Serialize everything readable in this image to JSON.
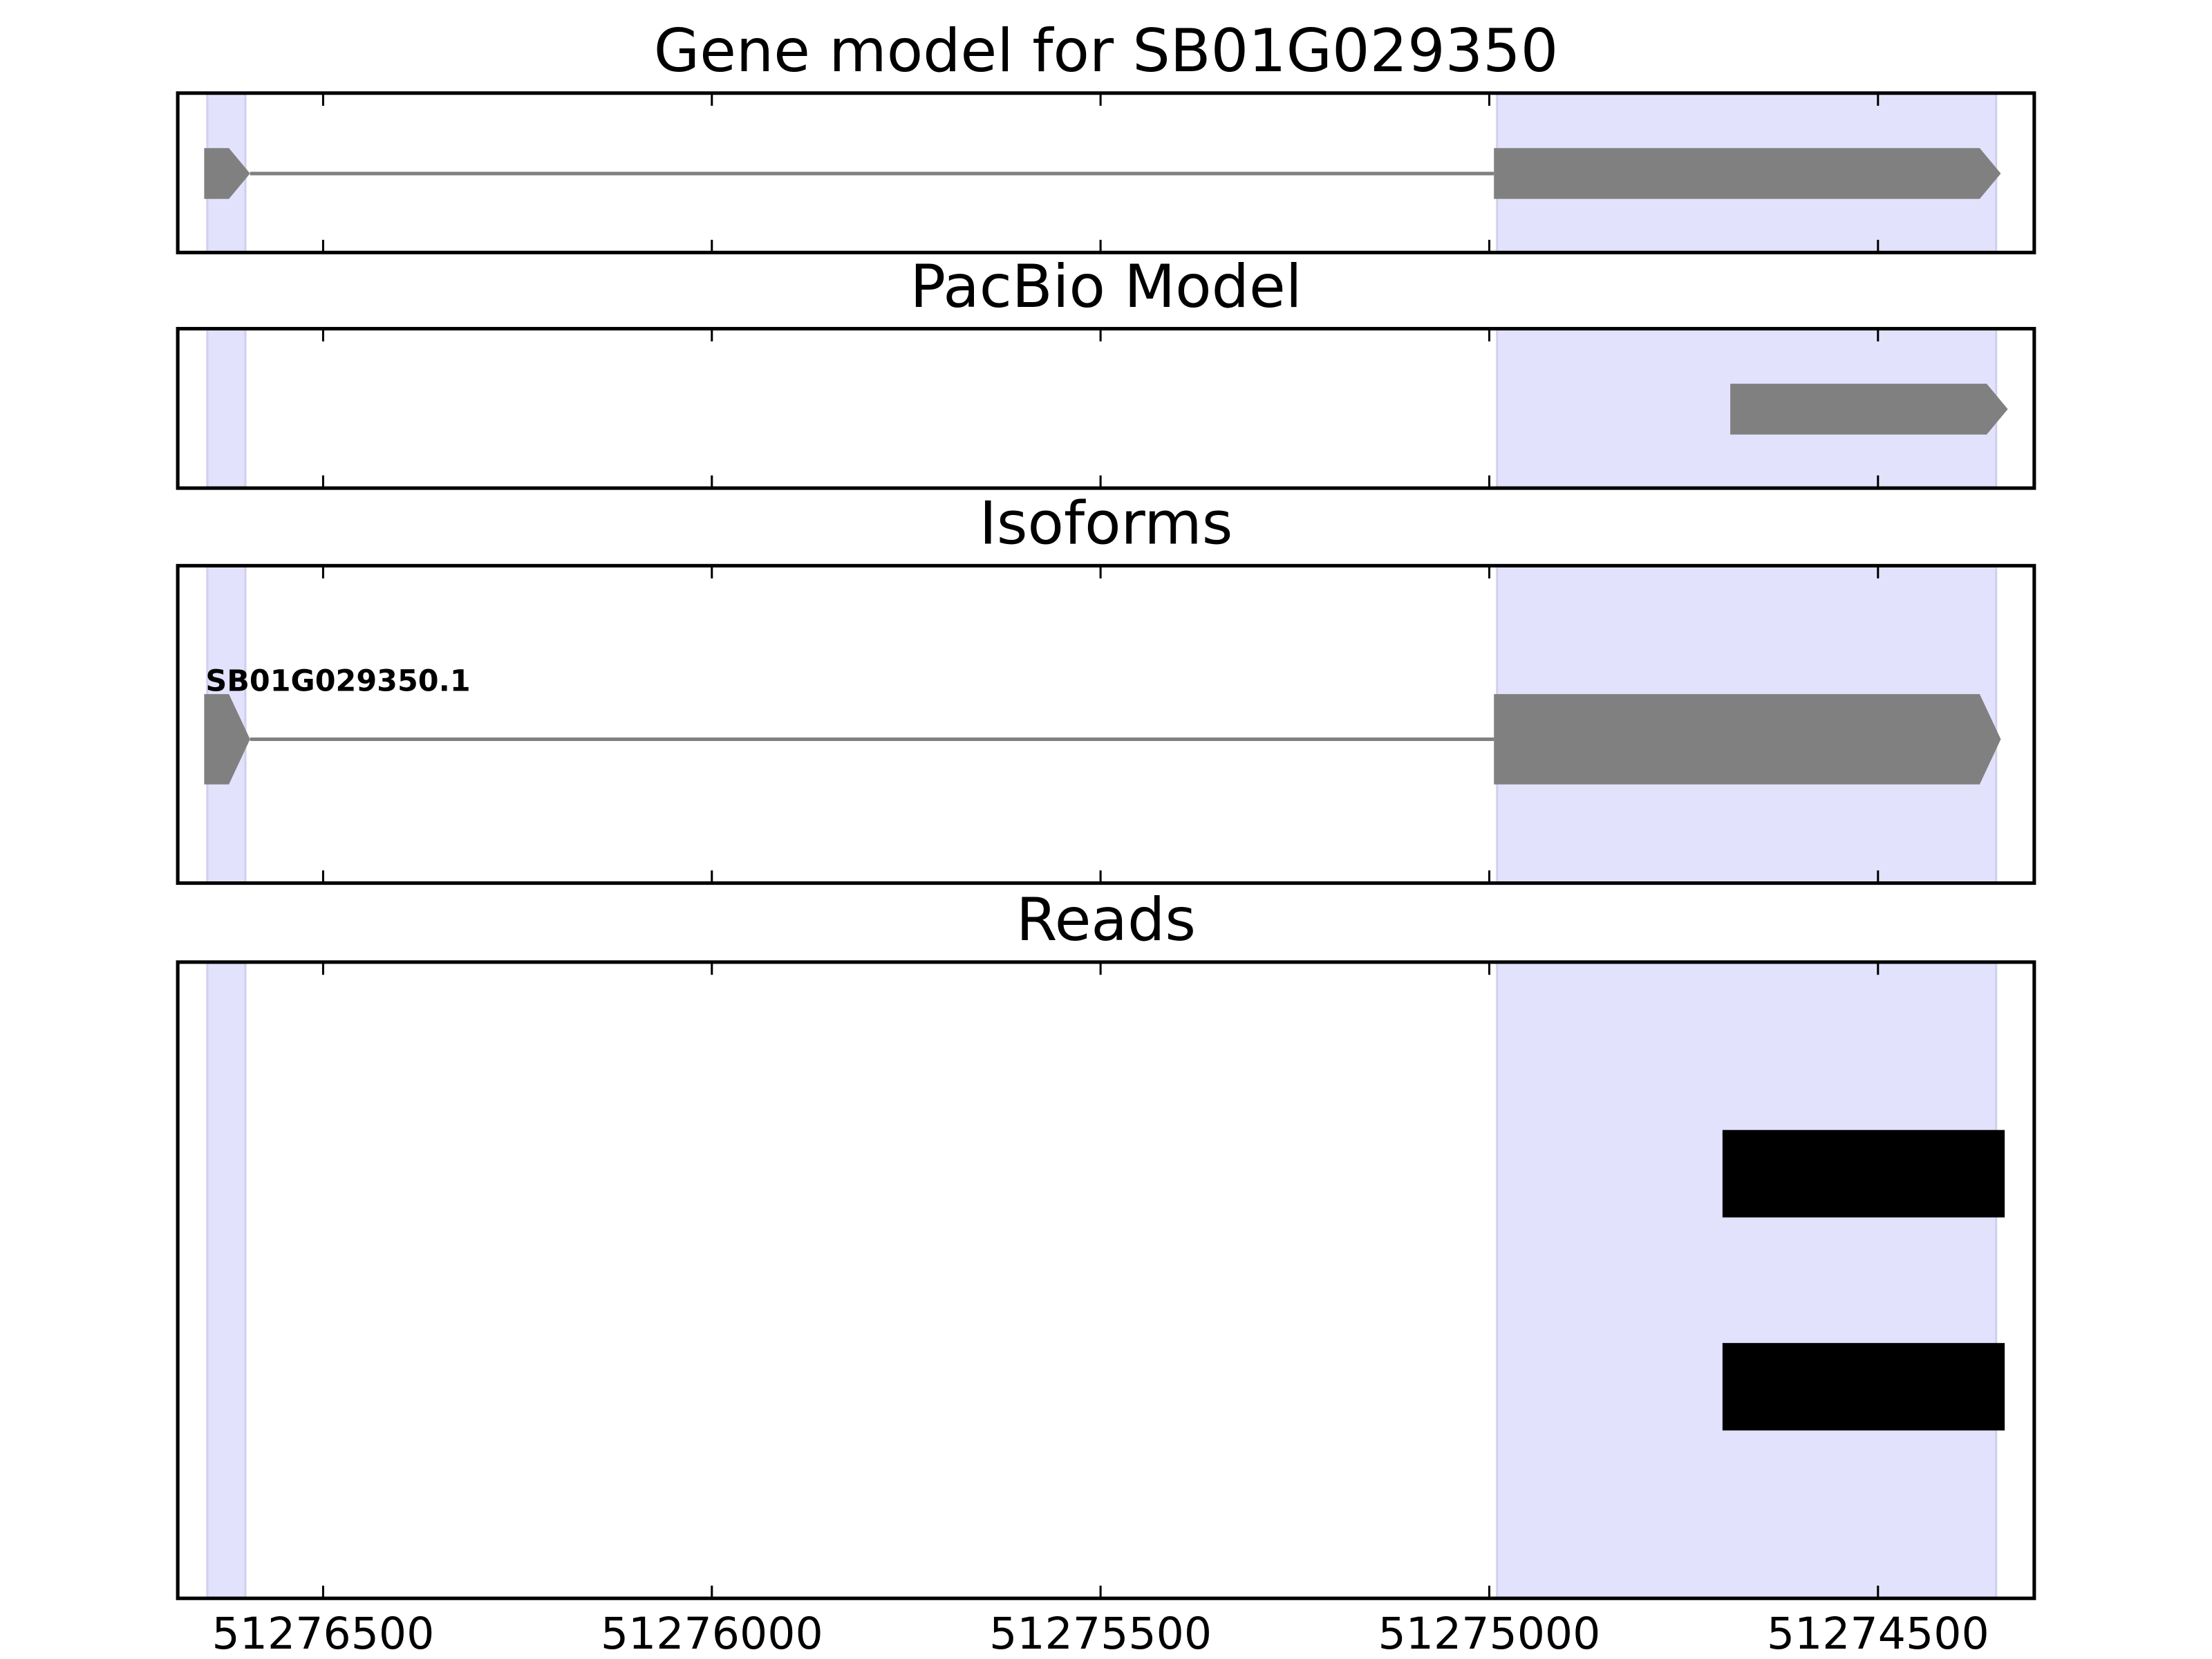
{
  "chart_data": [
    {
      "type": "gene",
      "title": "Gene model for SB01G029350",
      "xlim": [
        51276687,
        51274299
      ],
      "xticks": [
        51276500,
        51276000,
        51275500,
        51275000,
        51274500
      ],
      "highlights": [
        [
          51276649,
          51276600
        ],
        [
          51274990,
          51274348
        ]
      ],
      "exons": [
        [
          51276653,
          51276594
        ],
        [
          51274994,
          51274342
        ]
      ]
    },
    {
      "type": "gene",
      "title": "PacBio Model",
      "xlim": [
        51276687,
        51274299
      ],
      "xticks": [
        51276500,
        51276000,
        51275500,
        51275000,
        51274500
      ],
      "highlights": [
        [
          51276649,
          51276600
        ],
        [
          51274990,
          51274348
        ]
      ],
      "exons": [
        [
          51274690,
          51274333
        ]
      ]
    },
    {
      "type": "gene",
      "title": "Isoforms",
      "label": "SB01G029350.1",
      "xlim": [
        51276687,
        51274299
      ],
      "xticks": [
        51276500,
        51276000,
        51275500,
        51275000,
        51274500
      ],
      "highlights": [
        [
          51276649,
          51276600
        ],
        [
          51274990,
          51274348
        ]
      ],
      "exons": [
        [
          51276653,
          51276594
        ],
        [
          51274994,
          51274342
        ]
      ]
    },
    {
      "type": "reads",
      "title": "Reads",
      "xlim": [
        51276687,
        51274299
      ],
      "xticks": [
        51276500,
        51276000,
        51275500,
        51275000,
        51274500
      ],
      "highlights": [
        [
          51276649,
          51276600
        ],
        [
          51274990,
          51274348
        ]
      ],
      "reads": [
        [
          51274700,
          51274337
        ],
        [
          51274700,
          51274337
        ]
      ]
    }
  ]
}
